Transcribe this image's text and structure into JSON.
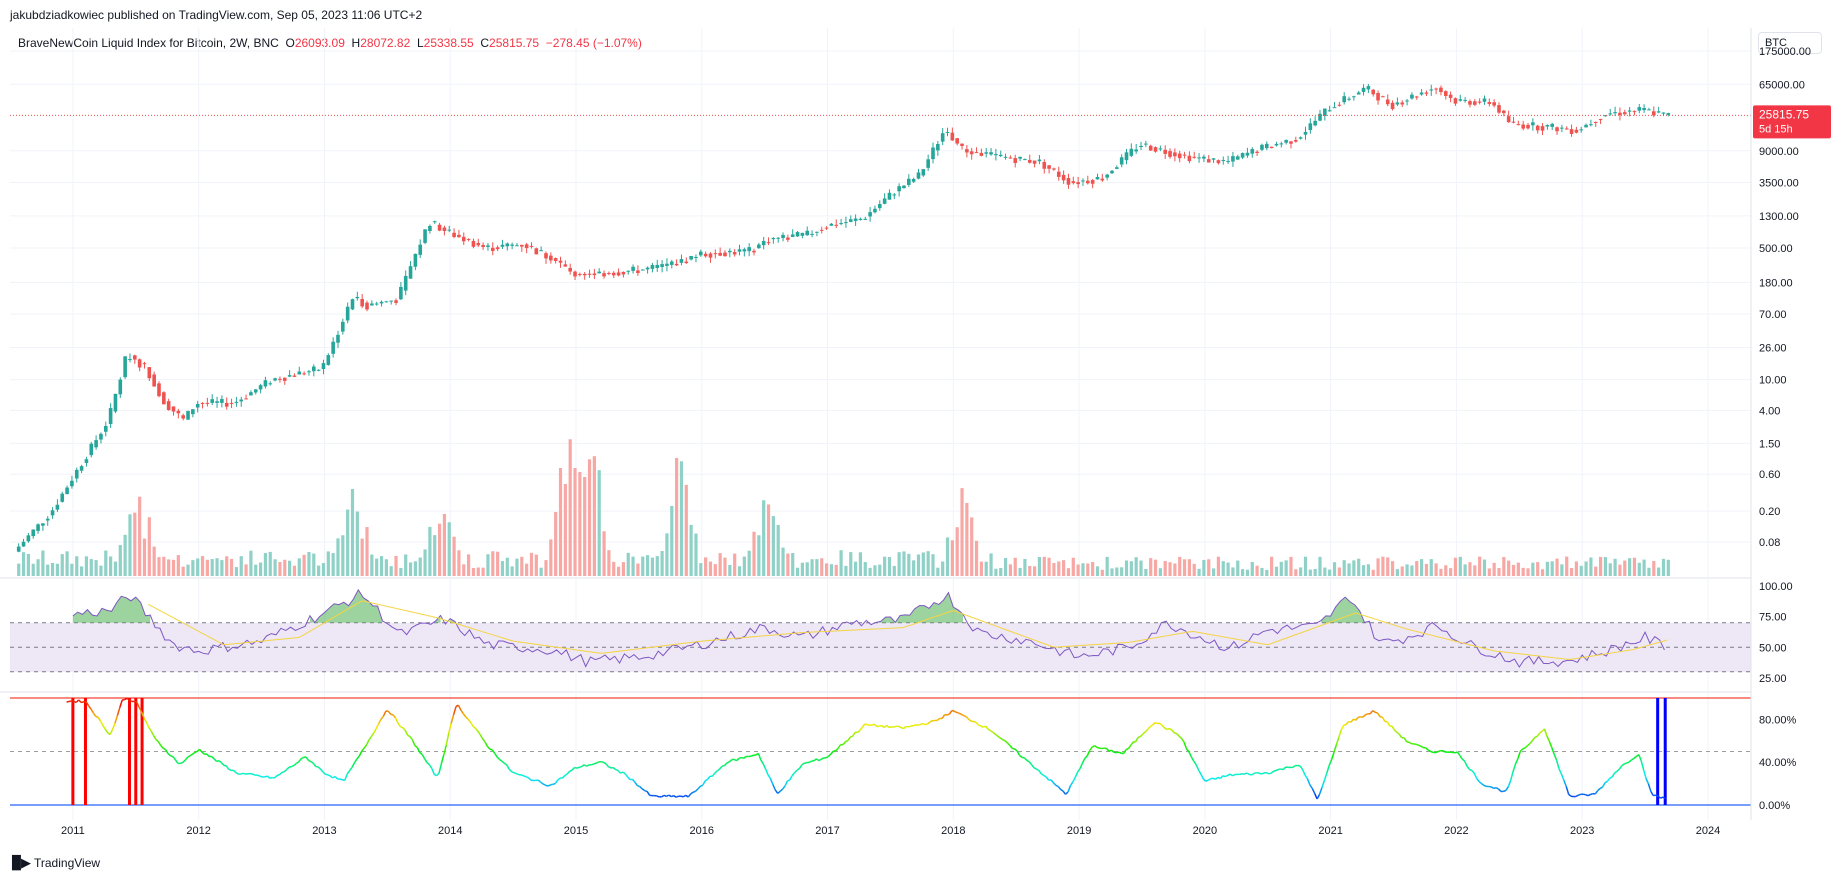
{
  "header": {
    "publisher": "jakubdziadkowiec published on TradingView.com, Sep 05, 2023 11:06 UTC+2",
    "symbol": "BraveNewCoin Liquid Index for Bitcoin, 2W, BNC",
    "o_label": "O",
    "o_value": "26093.09",
    "h_label": "H",
    "h_value": "28072.82",
    "l_label": "L",
    "l_value": "25338.55",
    "c_label": "C",
    "c_value": "25815.75",
    "change": "−278.45 (−1.07%)"
  },
  "currency": "BTC",
  "price_badge": {
    "price": "25815.75",
    "countdown": "5d 15h"
  },
  "footer": {
    "brand": "TradingView"
  },
  "colors": {
    "up": "#26a69a",
    "down": "#ef5350",
    "vol_up": "#8fd1c7",
    "vol_down": "#f7a8a5",
    "rsi_line": "#7e57c2",
    "rsi_ma": "#f5d442",
    "rsi_band": "#ede7f6",
    "badge": "#f23645"
  },
  "chart_data": [
    {
      "type": "candlestick",
      "title": "BraveNewCoin Liquid Index for Bitcoin, 2W, BNC",
      "yscale": "log",
      "ylim": [
        0.03,
        180000
      ],
      "y_ticks": [
        "175000.00",
        "65000.00",
        "9000.00",
        "3500.00",
        "1300.00",
        "500.00",
        "180.00",
        "70.00",
        "26.00",
        "10.00",
        "4.00",
        "1.50",
        "0.60",
        "0.20",
        "0.08"
      ],
      "x_ticks": [
        "2011",
        "2012",
        "2013",
        "2014",
        "2015",
        "2016",
        "2017",
        "2018",
        "2019",
        "2020",
        "2021",
        "2022",
        "2023",
        "2024"
      ],
      "price_path": [
        [
          2010.55,
          0.06
        ],
        [
          2010.85,
          0.2
        ],
        [
          2011.1,
          0.9
        ],
        [
          2011.3,
          3
        ],
        [
          2011.45,
          22
        ],
        [
          2011.6,
          14
        ],
        [
          2011.75,
          5
        ],
        [
          2011.9,
          3
        ],
        [
          2012.0,
          5
        ],
        [
          2012.3,
          5
        ],
        [
          2012.6,
          10
        ],
        [
          2013.0,
          14
        ],
        [
          2013.25,
          120
        ],
        [
          2013.35,
          90
        ],
        [
          2013.6,
          110
        ],
        [
          2013.85,
          1100
        ],
        [
          2014.0,
          800
        ],
        [
          2014.3,
          500
        ],
        [
          2014.6,
          560
        ],
        [
          2014.85,
          350
        ],
        [
          2015.0,
          230
        ],
        [
          2015.3,
          240
        ],
        [
          2015.6,
          270
        ],
        [
          2015.85,
          330
        ],
        [
          2016.0,
          420
        ],
        [
          2016.4,
          460
        ],
        [
          2016.55,
          650
        ],
        [
          2016.85,
          740
        ],
        [
          2017.0,
          960
        ],
        [
          2017.3,
          1200
        ],
        [
          2017.55,
          2700
        ],
        [
          2017.75,
          4400
        ],
        [
          2017.95,
          17000
        ],
        [
          2018.1,
          9000
        ],
        [
          2018.4,
          7500
        ],
        [
          2018.7,
          6500
        ],
        [
          2018.95,
          3500
        ],
        [
          2019.2,
          4000
        ],
        [
          2019.5,
          11000
        ],
        [
          2019.75,
          8500
        ],
        [
          2019.95,
          7200
        ],
        [
          2020.2,
          6500
        ],
        [
          2020.45,
          9500
        ],
        [
          2020.75,
          13000
        ],
        [
          2021.0,
          32000
        ],
        [
          2021.3,
          58000
        ],
        [
          2021.5,
          35000
        ],
        [
          2021.85,
          60000
        ],
        [
          2022.0,
          40000
        ],
        [
          2022.3,
          38000
        ],
        [
          2022.45,
          20000
        ],
        [
          2022.8,
          18000
        ],
        [
          2022.97,
          16500
        ],
        [
          2023.2,
          27000
        ],
        [
          2023.5,
          30500
        ],
        [
          2023.68,
          25815
        ]
      ],
      "last": 25815.75
    },
    {
      "type": "volume",
      "peaks": [
        [
          2011.5,
          "medium"
        ],
        [
          2013.2,
          "medium"
        ],
        [
          2013.9,
          "medium"
        ],
        [
          2014.9,
          "high"
        ],
        [
          2015.1,
          "high"
        ],
        [
          2015.8,
          "high"
        ],
        [
          2016.5,
          "medium"
        ],
        [
          2018.05,
          "medium"
        ]
      ]
    },
    {
      "type": "line",
      "title": "RSI",
      "ylim": [
        20,
        100
      ],
      "y_ticks": [
        "100.00",
        "75.00",
        "50.00",
        "25.00"
      ],
      "bands": [
        30,
        50,
        70
      ],
      "series": [
        {
          "name": "RSI",
          "x": [
            2011.0,
            2011.3,
            2011.45,
            2011.8,
            2012.0,
            2012.5,
            2013.0,
            2013.3,
            2013.6,
            2013.95,
            2014.3,
            2014.8,
            2015.1,
            2015.5,
            2015.9,
            2016.5,
            2016.8,
            2017.2,
            2017.6,
            2017.95,
            2018.2,
            2018.6,
            2019.0,
            2019.4,
            2019.7,
            2020.0,
            2020.2,
            2020.5,
            2020.9,
            2021.15,
            2021.4,
            2021.6,
            2021.85,
            2022.1,
            2022.5,
            2022.9,
            2023.2,
            2023.5,
            2023.68
          ],
          "values": [
            77,
            80,
            93,
            52,
            47,
            55,
            78,
            94,
            60,
            73,
            52,
            48,
            38,
            42,
            50,
            66,
            58,
            70,
            72,
            93,
            62,
            55,
            42,
            50,
            70,
            57,
            49,
            64,
            67,
            92,
            53,
            58,
            68,
            52,
            38,
            39,
            47,
            58,
            50
          ]
        },
        {
          "name": "RSI MA",
          "x": [
            2011.6,
            2012.2,
            2012.8,
            2013.3,
            2013.9,
            2014.5,
            2015.2,
            2016.0,
            2016.8,
            2017.6,
            2018.0,
            2018.8,
            2019.4,
            2019.9,
            2020.5,
            2021.2,
            2021.6,
            2022.3,
            2022.9,
            2023.4,
            2023.68
          ],
          "values": [
            85,
            52,
            58,
            88,
            74,
            55,
            45,
            55,
            62,
            66,
            80,
            50,
            54,
            63,
            52,
            78,
            65,
            47,
            40,
            48,
            56
          ]
        }
      ]
    },
    {
      "type": "line",
      "title": "Oscillator",
      "ylim": [
        0,
        100
      ],
      "y_ticks": [
        "80.00%",
        "40.00%",
        "0.00%"
      ],
      "signals_red": [
        2011.0,
        2011.1,
        2011.45,
        2011.5,
        2011.55
      ],
      "signals_blue": [
        2023.6,
        2023.66
      ],
      "series": [
        {
          "name": "Oscillator %",
          "x": [
            2010.95,
            2011.1,
            2011.3,
            2011.4,
            2011.5,
            2011.65,
            2011.85,
            2012.0,
            2012.3,
            2012.6,
            2012.85,
            2013.0,
            2013.15,
            2013.3,
            2013.5,
            2013.7,
            2013.9,
            2014.05,
            2014.3,
            2014.5,
            2014.8,
            2015.0,
            2015.2,
            2015.4,
            2015.6,
            2015.9,
            2016.2,
            2016.45,
            2016.6,
            2016.8,
            2017.0,
            2017.3,
            2017.6,
            2017.85,
            2018.0,
            2018.3,
            2018.6,
            2018.9,
            2019.1,
            2019.35,
            2019.6,
            2019.8,
            2020.0,
            2020.2,
            2020.5,
            2020.75,
            2020.9,
            2021.1,
            2021.35,
            2021.6,
            2021.8,
            2022.0,
            2022.2,
            2022.4,
            2022.5,
            2022.7,
            2022.9,
            2023.1,
            2023.3,
            2023.45,
            2023.55,
            2023.68
          ],
          "values": [
            97,
            97,
            65,
            100,
            97,
            62,
            38,
            52,
            30,
            25,
            45,
            30,
            22,
            50,
            90,
            60,
            25,
            95,
            55,
            30,
            18,
            35,
            40,
            28,
            8,
            8,
            40,
            48,
            10,
            38,
            45,
            75,
            72,
            78,
            88,
            70,
            40,
            10,
            55,
            48,
            78,
            65,
            22,
            28,
            30,
            38,
            5,
            75,
            88,
            60,
            50,
            50,
            20,
            12,
            48,
            72,
            8,
            10,
            35,
            48,
            10,
            5
          ]
        }
      ]
    }
  ]
}
